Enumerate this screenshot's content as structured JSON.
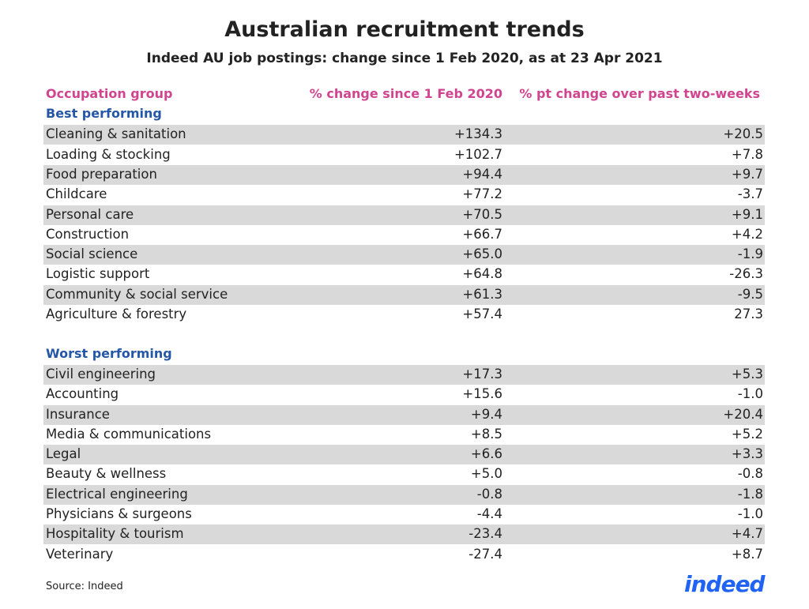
{
  "header": {
    "title": "Australian recruitment trends",
    "subtitle": "Indeed AU job postings: change since 1 Feb 2020, as at 23 Apr 2021"
  },
  "table": {
    "columns": [
      "Occupation group",
      "% change since 1 Feb 2020",
      "% pt change over past two-weeks"
    ],
    "sections": [
      {
        "title": "Best performing",
        "rows": [
          [
            "Cleaning & sanitation",
            "+134.3",
            "+20.5"
          ],
          [
            "Loading & stocking",
            "+102.7",
            "+7.8"
          ],
          [
            "Food preparation",
            "+94.4",
            "+9.7"
          ],
          [
            "Childcare",
            "+77.2",
            "-3.7"
          ],
          [
            "Personal care",
            "+70.5",
            "+9.1"
          ],
          [
            "Construction",
            "+66.7",
            "+4.2"
          ],
          [
            "Social science",
            "+65.0",
            "-1.9"
          ],
          [
            "Logistic support",
            "+64.8",
            "-26.3"
          ],
          [
            "Community & social service",
            "+61.3",
            "-9.5"
          ],
          [
            "Agriculture & forestry",
            "+57.4",
            "27.3"
          ]
        ]
      },
      {
        "title": "Worst performing",
        "rows": [
          [
            "Civil engineering",
            "+17.3",
            "+5.3"
          ],
          [
            "Accounting",
            "+15.6",
            "-1.0"
          ],
          [
            "Insurance",
            "+9.4",
            "+20.4"
          ],
          [
            "Media & communications",
            "+8.5",
            "+5.2"
          ],
          [
            "Legal",
            "+6.6",
            "+3.3"
          ],
          [
            "Beauty & wellness",
            "+5.0",
            "-0.8"
          ],
          [
            "Electrical engineering",
            "-0.8",
            "-1.8"
          ],
          [
            "Physicians & surgeons",
            "-4.4",
            "-1.0"
          ],
          [
            "Hospitality & tourism",
            "-23.4",
            "+4.7"
          ],
          [
            "Veterinary",
            "-27.4",
            "+8.7"
          ]
        ]
      }
    ]
  },
  "footer": {
    "source": "Source: Indeed",
    "logo": "indeed"
  }
}
